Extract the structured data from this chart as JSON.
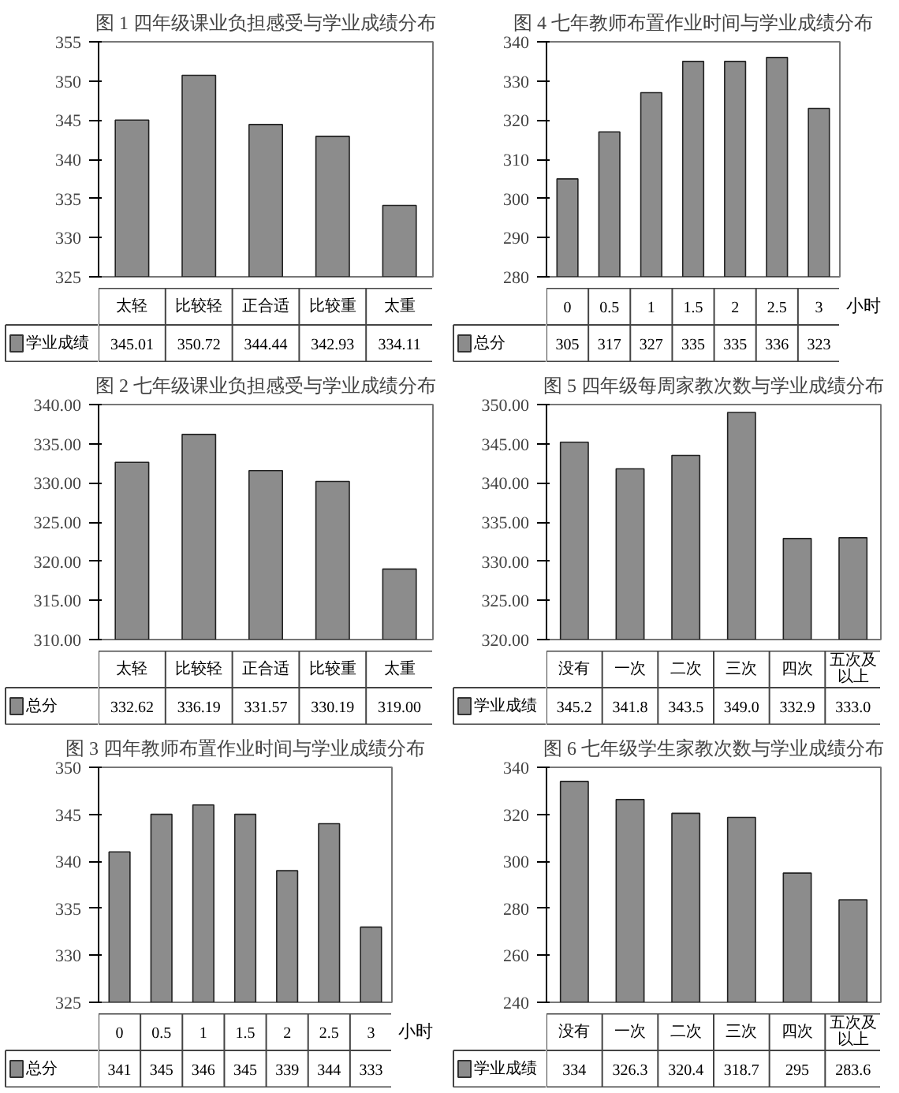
{
  "chart_data": [
    {
      "type": "bar",
      "title": "图 1 四年级课业负担感受与学业成绩分布",
      "categories": [
        "太轻",
        "比较轻",
        "正合适",
        "比较重",
        "太重"
      ],
      "series": [
        {
          "name": "学业成绩",
          "color": "#8c8c8c",
          "values": [
            345.01,
            350.72,
            344.44,
            342.93,
            334.11
          ],
          "value_labels": [
            "345.01",
            "350.72",
            "344.44",
            "342.93",
            "334.11"
          ]
        }
      ],
      "ylim": [
        325,
        355
      ],
      "yticks": [
        325,
        330,
        335,
        340,
        345,
        350,
        355
      ],
      "legend": "bottom"
    },
    {
      "type": "bar",
      "title": "图 4 七年教师布置作业时间与学业成绩分布",
      "xlabel": "小时",
      "categories": [
        "0",
        "0.5",
        "1",
        "1.5",
        "2",
        "2.5",
        "3"
      ],
      "series": [
        {
          "name": "总分",
          "color": "#8c8c8c",
          "values": [
            305,
            317,
            327,
            335,
            335,
            336,
            323
          ],
          "value_labels": [
            "305",
            "317",
            "327",
            "335",
            "335",
            "336",
            "323"
          ]
        }
      ],
      "ylim": [
        280,
        340
      ],
      "yticks": [
        280,
        290,
        300,
        310,
        320,
        330,
        340
      ],
      "legend": "bottom"
    },
    {
      "type": "bar",
      "title": "图 2 七年级课业负担感受与学业成绩分布",
      "categories": [
        "太轻",
        "比较轻",
        "正合适",
        "比较重",
        "太重"
      ],
      "series": [
        {
          "name": "总分",
          "color": "#8c8c8c",
          "values": [
            332.62,
            336.19,
            331.57,
            330.19,
            319.0
          ],
          "value_labels": [
            "332.62",
            "336.19",
            "331.57",
            "330.19",
            "319.00"
          ]
        }
      ],
      "ylim": [
        310,
        340
      ],
      "yticks": [
        {
          "value": 310,
          "label": "310.00"
        },
        {
          "value": 315,
          "label": "315.00"
        },
        {
          "value": 320,
          "label": "320.00"
        },
        {
          "value": 325,
          "label": "325.00"
        },
        {
          "value": 330,
          "label": "330.00"
        },
        {
          "value": 335,
          "label": "335.00"
        },
        {
          "value": 340,
          "label": "340.00"
        }
      ],
      "legend": "bottom"
    },
    {
      "type": "bar",
      "title": "图 5 四年级每周家教次数与学业成绩分布",
      "categories": [
        "没有",
        "一次",
        "二次",
        "三次",
        "四次",
        "五次及以上"
      ],
      "series": [
        {
          "name": "学业成绩",
          "color": "#8c8c8c",
          "values": [
            345.2,
            341.8,
            343.5,
            349.0,
            332.9,
            333.0
          ],
          "value_labels": [
            "345.2",
            "341.8",
            "343.5",
            "349.0",
            "332.9",
            "333.0"
          ]
        }
      ],
      "ylim": [
        320,
        350
      ],
      "yticks": [
        {
          "value": 320,
          "label": "320.00"
        },
        {
          "value": 325,
          "label": "325.00"
        },
        {
          "value": 330,
          "label": "330.00"
        },
        {
          "value": 335,
          "label": "335.00"
        },
        {
          "value": 340,
          "label": "340.00"
        },
        {
          "value": 345,
          "label": "345.00"
        },
        {
          "value": 350,
          "label": "350.00"
        }
      ],
      "legend": "bottom"
    },
    {
      "type": "bar",
      "title": "图 3 四年教师布置作业时间与学业成绩分布",
      "xlabel": "小时",
      "categories": [
        "0",
        "0.5",
        "1",
        "1.5",
        "2",
        "2.5",
        "3"
      ],
      "series": [
        {
          "name": "总分",
          "color": "#8c8c8c",
          "values": [
            341,
            345,
            346,
            345,
            339,
            344,
            333
          ],
          "value_labels": [
            "341",
            "345",
            "346",
            "345",
            "339",
            "344",
            "333"
          ]
        }
      ],
      "ylim": [
        325,
        350
      ],
      "yticks": [
        325,
        330,
        335,
        340,
        345,
        350
      ],
      "legend": "bottom"
    },
    {
      "type": "bar",
      "title": "图 6 七年级学生家教次数与学业成绩分布",
      "categories": [
        "没有",
        "一次",
        "二次",
        "三次",
        "四次",
        "五次及以上"
      ],
      "series": [
        {
          "name": "学业成绩",
          "color": "#8c8c8c",
          "values": [
            334,
            326.3,
            320.4,
            318.7,
            295,
            283.6
          ],
          "value_labels": [
            "334",
            "326.3",
            "320.4",
            "318.7",
            "295",
            "283.6"
          ]
        }
      ],
      "ylim": [
        240,
        340
      ],
      "yticks": [
        240,
        260,
        280,
        300,
        320,
        340
      ],
      "legend": "bottom"
    }
  ]
}
